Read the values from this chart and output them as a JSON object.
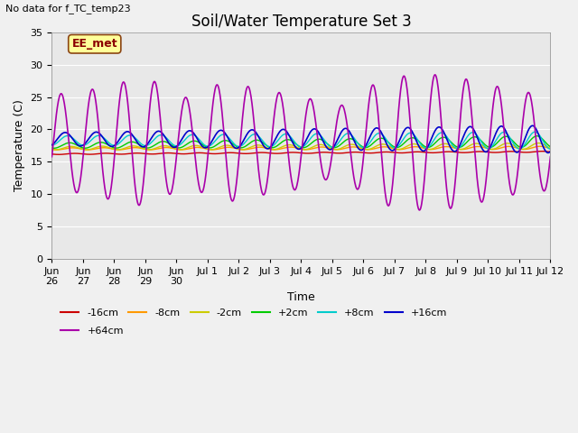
{
  "title": "Soil/Water Temperature Set 3",
  "xlabel": "Time",
  "ylabel": "Temperature (C)",
  "no_data_text": "No data for f_TC_temp23",
  "annotation_text": "EE_met",
  "ylim": [
    0,
    35
  ],
  "yticks": [
    0,
    5,
    10,
    15,
    20,
    25,
    30,
    35
  ],
  "background_color": "#f0f0f0",
  "plot_bg_color": "#e8e8e8",
  "legend_entries": [
    "-16cm",
    "-8cm",
    "-2cm",
    "+2cm",
    "+8cm",
    "+16cm",
    "+64cm"
  ],
  "legend_colors": [
    "#cc0000",
    "#ff9900",
    "#cccc00",
    "#00cc00",
    "#00cccc",
    "#0000cc",
    "#aa00aa"
  ],
  "title_fontsize": 12,
  "axis_fontsize": 9,
  "tick_fontsize": 8,
  "xtick_labels": [
    "Jun\n26",
    "Jun\n27",
    "Jun\n28",
    "Jun\n29",
    "Jun\n30",
    "Jul 1",
    "Jul 2",
    "Jul 3",
    "Jul 4",
    "Jul 5",
    "Jul 6",
    "Jul 7",
    "Jul 8",
    "Jul 9",
    "Jul 10",
    "Jul 11",
    "Jul 12"
  ],
  "xtick_single": [
    "Jun 26",
    "Jun 27",
    "Jun 28",
    "Jun 29",
    "Jun 30",
    "Jul 1",
    "Jul 2",
    "Jul 3",
    "Jul 4",
    "Jul 5",
    "Jul 6",
    "Jul 7",
    "Jul 8",
    "Jul 9",
    "Jul 10",
    "Jul 11",
    "Jul 12"
  ]
}
